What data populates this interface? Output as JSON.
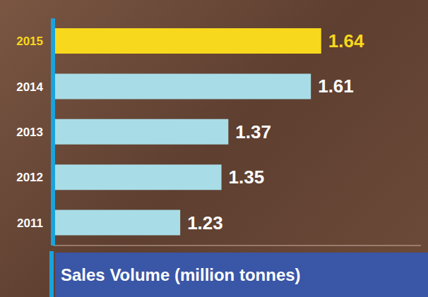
{
  "chart_data": {
    "type": "bar",
    "title": "Sales Volume (million tonnes)",
    "orientation": "horizontal",
    "categories": [
      "2015",
      "2014",
      "2013",
      "2012",
      "2011"
    ],
    "values": [
      1.64,
      1.61,
      1.37,
      1.35,
      1.23
    ],
    "colors": [
      "#f8d81c",
      "#a8dde7",
      "#a8dde7",
      "#a8dde7",
      "#a8dde7"
    ],
    "xlim": [
      0.86,
      1.93
    ],
    "xticks": [],
    "data_labels": true,
    "tick_labels": "y",
    "grid": false
  }
}
